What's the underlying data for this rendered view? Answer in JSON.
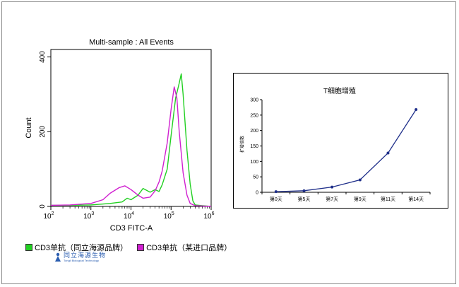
{
  "chart_data": [
    {
      "type": "area",
      "title": "Multi-sample : All Events",
      "xlabel": "CD3 FITC-A",
      "ylabel": "Count",
      "xscale": "log",
      "xlim": [
        100,
        1000000
      ],
      "ylim": [
        0,
        420
      ],
      "x_ticks": [
        {
          "base": "10",
          "exp": "2"
        },
        {
          "base": "10",
          "exp": "3"
        },
        {
          "base": "10",
          "exp": "4"
        },
        {
          "base": "10",
          "exp": "5"
        },
        {
          "base": "10",
          "exp": "6"
        }
      ],
      "y_ticks": [
        "0",
        "200",
        "400"
      ],
      "series": [
        {
          "name": "CD3单抗（同立海源品牌）",
          "color": "#22d022",
          "points": [
            [
              100,
              3
            ],
            [
              300,
              3
            ],
            [
              1000,
              4
            ],
            [
              3000,
              8
            ],
            [
              6000,
              12
            ],
            [
              8000,
              22
            ],
            [
              10000,
              18
            ],
            [
              15000,
              30
            ],
            [
              20000,
              48
            ],
            [
              30000,
              38
            ],
            [
              40000,
              45
            ],
            [
              50000,
              40
            ],
            [
              60000,
              58
            ],
            [
              80000,
              100
            ],
            [
              100000,
              190
            ],
            [
              130000,
              290
            ],
            [
              160000,
              330
            ],
            [
              180000,
              355
            ],
            [
              200000,
              300
            ],
            [
              250000,
              150
            ],
            [
              300000,
              60
            ],
            [
              350000,
              15
            ],
            [
              400000,
              4
            ],
            [
              600000,
              2
            ],
            [
              1000000,
              0
            ]
          ]
        },
        {
          "name": "CD3单抗（某进口品牌）",
          "color": "#d020d0",
          "points": [
            [
              100,
              3
            ],
            [
              300,
              4
            ],
            [
              1000,
              8
            ],
            [
              2000,
              18
            ],
            [
              3000,
              35
            ],
            [
              5000,
              50
            ],
            [
              7000,
              55
            ],
            [
              10000,
              45
            ],
            [
              15000,
              30
            ],
            [
              20000,
              22
            ],
            [
              30000,
              25
            ],
            [
              40000,
              42
            ],
            [
              50000,
              65
            ],
            [
              60000,
              95
            ],
            [
              80000,
              170
            ],
            [
              100000,
              260
            ],
            [
              120000,
              320
            ],
            [
              140000,
              290
            ],
            [
              160000,
              200
            ],
            [
              200000,
              90
            ],
            [
              250000,
              30
            ],
            [
              300000,
              8
            ],
            [
              400000,
              2
            ],
            [
              1000000,
              0
            ]
          ]
        }
      ]
    },
    {
      "type": "line",
      "title": "T细胞增殖",
      "ylabel": "扩增倍数",
      "categories": [
        "第0天",
        "第5天",
        "第7天",
        "第9天",
        "第11天",
        "第14天"
      ],
      "values": [
        2,
        5,
        17,
        40,
        127,
        268
      ],
      "ylim": [
        0,
        300
      ],
      "y_ticks": [
        "0",
        "50",
        "100",
        "150",
        "200",
        "250",
        "300"
      ],
      "color": "#1f2f8a"
    }
  ],
  "logo": {
    "name": "同立海源生物",
    "tagline": "Tongli Biological Technology"
  }
}
